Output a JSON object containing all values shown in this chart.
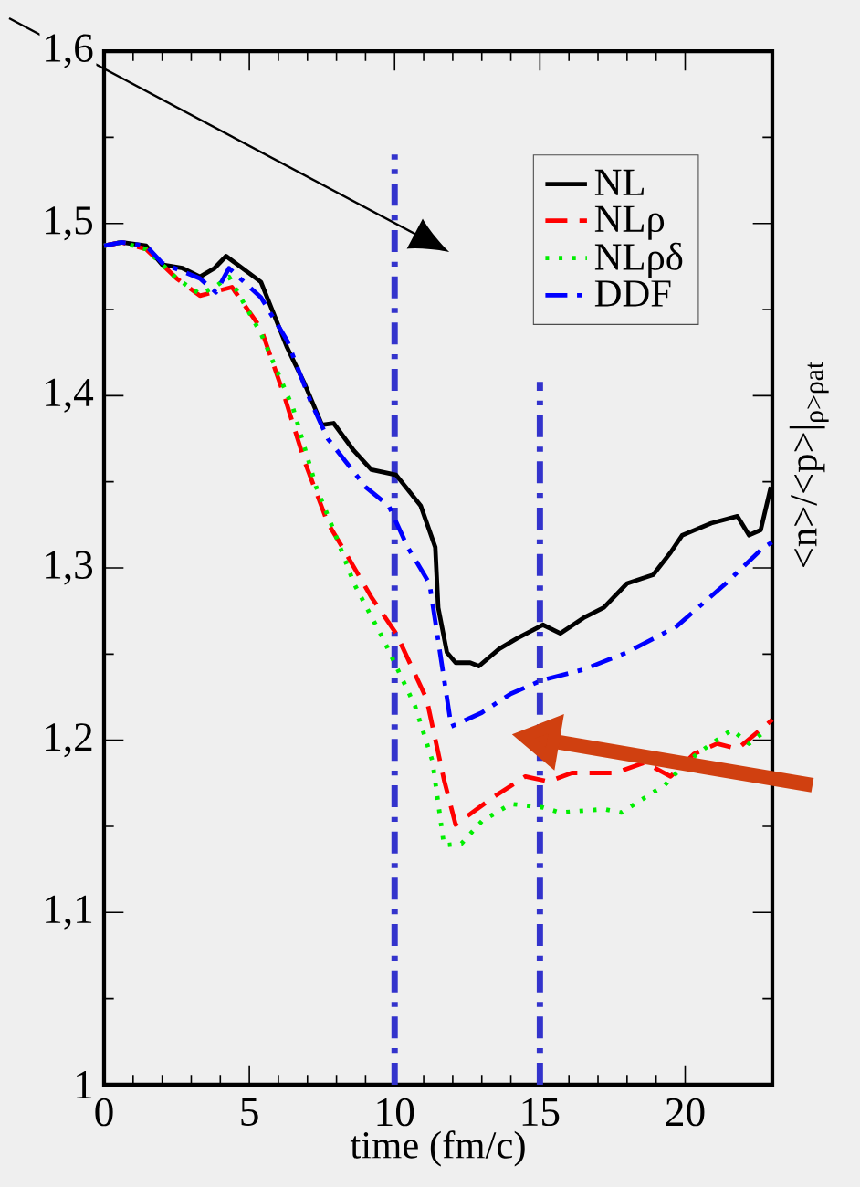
{
  "chart_data": {
    "type": "line",
    "xlabel": "time (fm/c)",
    "ylabel": "<n>/<p>|$_{ρ>ρat}$",
    "xlim": [
      0,
      23
    ],
    "ylim": [
      1,
      1.6
    ],
    "xticks": [
      0,
      5,
      10,
      15,
      20
    ],
    "yticks": [
      {
        "value": 1,
        "label": "1"
      },
      {
        "value": 1.1,
        "label": "1,1"
      },
      {
        "value": 1.2,
        "label": "1,2"
      },
      {
        "value": 1.3,
        "label": "1,3"
      },
      {
        "value": 1.4,
        "label": "1,4"
      },
      {
        "value": 1.5,
        "label": "1,5"
      },
      {
        "value": 1.6,
        "label": "1,6"
      }
    ],
    "legend": "top right",
    "grid": false,
    "marker": "none",
    "ref_lines": [
      {
        "axis": "x",
        "value": 10,
        "color": "#3333cc",
        "line_style": "dashdot"
      },
      {
        "axis": "x",
        "value": 15,
        "color": "#3333cc",
        "line_style": "dashdot"
      }
    ],
    "series": [
      {
        "name": "NL",
        "color": "#000000",
        "line_style": "solid",
        "x": [
          0,
          0.6,
          1.45,
          2.0,
          2.7,
          3.3,
          3.8,
          4.2,
          5.0,
          5.4,
          6.3,
          6.9,
          7.5,
          7.9,
          8.6,
          9.2,
          10.05,
          10.9,
          11.4,
          11.5,
          11.8,
          12.1,
          12.6,
          12.9,
          13.6,
          14.2,
          15.1,
          15.7,
          16.5,
          17.2,
          18.0,
          18.9,
          19.5,
          19.9,
          20.9,
          21.8,
          22.2,
          22.6,
          22.95
        ],
        "values": [
          1.487,
          1.489,
          1.487,
          1.476,
          1.474,
          1.469,
          1.474,
          1.481,
          1.471,
          1.466,
          1.428,
          1.407,
          1.383,
          1.384,
          1.368,
          1.357,
          1.354,
          1.336,
          1.312,
          1.277,
          1.251,
          1.245,
          1.245,
          1.243,
          1.253,
          1.259,
          1.267,
          1.262,
          1.271,
          1.277,
          1.291,
          1.296,
          1.309,
          1.319,
          1.326,
          1.33,
          1.319,
          1.322,
          1.347
        ]
      },
      {
        "name": "NLρ",
        "color": "#ff0000",
        "line_style": "dashed",
        "x": [
          0,
          0.6,
          1.45,
          2.5,
          3.3,
          4.4,
          5.4,
          6.2,
          6.9,
          7.7,
          8.2,
          9.2,
          10.05,
          11.1,
          11.7,
          12.1,
          13.4,
          14.5,
          15.3,
          16.1,
          17.6,
          18.6,
          19.5,
          20.3,
          21.1,
          21.8,
          22.8,
          23
        ],
        "values": [
          1.487,
          1.489,
          1.485,
          1.468,
          1.458,
          1.463,
          1.439,
          1.4,
          1.362,
          1.326,
          1.312,
          1.283,
          1.262,
          1.224,
          1.177,
          1.151,
          1.167,
          1.179,
          1.176,
          1.181,
          1.181,
          1.187,
          1.179,
          1.192,
          1.198,
          1.195,
          1.209,
          1.212
        ]
      },
      {
        "name": "NLρδ",
        "color": "#00ee00",
        "line_style": "dotted",
        "x": [
          0,
          0.6,
          1.45,
          2.5,
          3.3,
          3.8,
          4.3,
          5.4,
          6.5,
          7.3,
          7.9,
          8.6,
          9.6,
          10.7,
          11.3,
          11.7,
          12.3,
          13.0,
          14.0,
          15.1,
          15.7,
          17.2,
          17.8,
          19.3,
          20.1,
          20.9,
          21.6,
          22.2,
          22.8
        ],
        "values": [
          1.487,
          1.489,
          1.485,
          1.468,
          1.459,
          1.463,
          1.469,
          1.436,
          1.393,
          1.347,
          1.322,
          1.291,
          1.259,
          1.22,
          1.188,
          1.139,
          1.14,
          1.153,
          1.163,
          1.161,
          1.158,
          1.16,
          1.158,
          1.174,
          1.188,
          1.198,
          1.206,
          1.198,
          1.206
        ]
      },
      {
        "name": "DDF",
        "color": "#0000ff",
        "line_style": "dashdot",
        "x": [
          0,
          0.6,
          1.45,
          2.0,
          3.3,
          3.85,
          4.3,
          5.4,
          6.3,
          7.1,
          7.7,
          9.0,
          9.8,
          10.45,
          11.2,
          11.95,
          13.0,
          14.0,
          15.1,
          16.5,
          18.0,
          19.7,
          21.4,
          22.7,
          23
        ],
        "values": [
          1.487,
          1.489,
          1.487,
          1.477,
          1.468,
          1.46,
          1.474,
          1.457,
          1.432,
          1.397,
          1.375,
          1.347,
          1.336,
          1.312,
          1.291,
          1.208,
          1.216,
          1.227,
          1.235,
          1.241,
          1.251,
          1.266,
          1.291,
          1.312,
          1.315
        ]
      }
    ]
  }
}
